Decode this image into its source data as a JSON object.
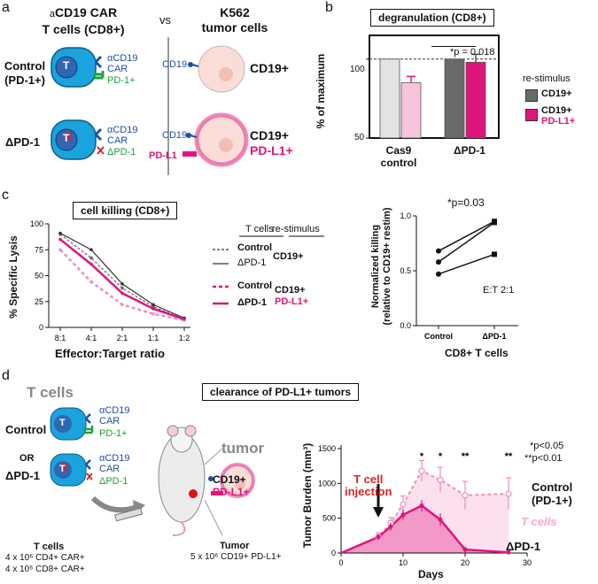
{
  "panel_a": {
    "letter": "a",
    "title_prefix": "a",
    "title_line1": "CD19 CAR",
    "title_line2": "T cells (CD8+)",
    "vs": "vs",
    "tumor_line1": "K562",
    "tumor_line2": "tumor cells",
    "row1_label_line1": "Control",
    "row1_label_line2": "(PD-1+)",
    "row2_label": "ΔPD-1",
    "cell_letter": "T",
    "car_line1": "αCD19",
    "car_line2": "CAR",
    "pd1_pos": "PD-1+",
    "pd1_neg": "ΔPD-1",
    "cd19": "CD19",
    "pdl1": "PD-L1",
    "tumor1_label": "CD19+",
    "tumor2_label_line1": "CD19+",
    "tumor2_label_line2": "PD-L1+",
    "colors": {
      "t_cell": "#1aa3dc",
      "car": "#1f4fa3",
      "pd1": "#1aa33a",
      "pink": "#e0147d",
      "tumor": "#f9ddd6"
    }
  },
  "panel_b": {
    "letter": "b",
    "title": "degranulation (CD8+)",
    "ylabel": "% of maximum",
    "yticks": [
      "100",
      "50"
    ],
    "xcat1_line1": "Cas9",
    "xcat1_line2": "control",
    "xcat2": "ΔPD-1",
    "significance": "*p = 0.018",
    "legend_title": "re-stimulus",
    "legend1": "CD19+",
    "legend2_line1": "CD19+",
    "legend2_line2": "PD-L1+"
  },
  "panel_c": {
    "letter": "c",
    "title": "cell killing (CD8+)",
    "ylabel": "% Specific Lysis",
    "xlabel": "Effector:Target ratio",
    "yticks": [
      "0",
      "25",
      "50",
      "75",
      "100"
    ],
    "xticks": [
      "8:1",
      "4:1",
      "2:1",
      "1:1",
      "1:2"
    ],
    "legend_hdr_tcells": "T cells",
    "legend_hdr_restim": "re-stimulus",
    "legend_control": "Control",
    "legend_dpd1": "ΔPD-1",
    "legend_cd19": "CD19+",
    "legend_pdl1_line1": "CD19+",
    "legend_pdl1_line2": "PD-L1+",
    "right_ylabel_line1": "Normalized killing",
    "right_ylabel_line2": "(relative to CD19+ restim)",
    "right_yticks": [
      "0.0",
      "0.5",
      "1.0"
    ],
    "right_xticks": [
      "Control",
      "ΔPD-1"
    ],
    "right_xlabel": "CD8+ T cells",
    "right_sig": "*p=0.03",
    "right_note": "E:T 2:1"
  },
  "panel_d": {
    "letter": "d",
    "title": "clearance of PD-L1+ tumors",
    "tcells_header": "T cells",
    "control": "Control",
    "or": "OR",
    "dpd1": "ΔPD-1",
    "tcells_dose_title": "T cells",
    "tcells_dose_line1": "4 x 10⁶ CD4+ CAR+",
    "tcells_dose_line2": "4 x 10⁶ CD8+ CAR+",
    "tumor_header": "tumor",
    "tumor_cd19": "CD19+",
    "tumor_pdl1": "PD-L1+",
    "tumor_dose_title": "Tumor",
    "tumor_dose_line": "5 x 10⁶ CD19+ PD-L1+",
    "ylabel": "Tumor Burden (mm³)",
    "xlabel": "Days",
    "yticks": [
      "0",
      "500",
      "1000",
      "1500"
    ],
    "xticks": [
      "0",
      "10",
      "20",
      "30"
    ],
    "injection_line1": "T cell",
    "injection_line2": "injection",
    "stars": [
      "*",
      "*",
      "**",
      "**"
    ],
    "sig1": "*p<0.05",
    "sig2": "**p<0.01",
    "label_control_line1": "Control",
    "label_control_line2": "(PD-1+)",
    "label_tcells": "T cells",
    "label_dpd1": "ΔPD-1"
  },
  "chart_data": [
    {
      "type": "bar",
      "title": "degranulation (CD8+)",
      "ylabel": "% of maximum",
      "ylim": [
        50,
        115
      ],
      "categories": [
        "Cas9 control",
        "ΔPD-1"
      ],
      "series": [
        {
          "name": "CD19+",
          "values": [
            100,
            100
          ]
        },
        {
          "name": "CD19+ PD-L1+",
          "values": [
            85,
            98
          ],
          "errors": [
            4,
            5
          ]
        }
      ]
    },
    {
      "type": "line",
      "title": "cell killing (CD8+)",
      "xlabel": "Effector:Target ratio",
      "ylabel": "% Specific Lysis",
      "ylim": [
        0,
        100
      ],
      "categories": [
        "8:1",
        "4:1",
        "2:1",
        "1:1",
        "1:2"
      ],
      "series": [
        {
          "name": "Control",
          "values": [
            90,
            67,
            38,
            20,
            8
          ]
        },
        {
          "name": "ΔPD-1",
          "values": [
            91,
            75,
            42,
            22,
            9
          ]
        },
        {
          "name": "Control",
          "values": [
            75,
            44,
            22,
            13,
            7
          ]
        },
        {
          "name": "ΔPD-1",
          "values": [
            85,
            61,
            33,
            18,
            8
          ]
        }
      ]
    },
    {
      "type": "line",
      "ylabel": "Normalized killing (relative to CD19+ restim)",
      "xlabel": "CD8+ T cells",
      "ylim": [
        0,
        1.0
      ],
      "categories": [
        "Control",
        "ΔPD-1"
      ],
      "series": [
        {
          "values": [
            0.68,
            0.95
          ]
        },
        {
          "values": [
            0.58,
            0.94
          ]
        },
        {
          "values": [
            0.47,
            0.65
          ]
        }
      ]
    },
    {
      "type": "area",
      "xlabel": "Days",
      "ylabel": "Tumor Burden (mm³)",
      "xlim": [
        0,
        30
      ],
      "ylim": [
        0,
        1500
      ],
      "x": [
        0,
        6,
        8,
        10,
        13,
        16,
        20,
        27
      ],
      "series": [
        {
          "name": "Control (PD-1+)",
          "values": [
            0,
            230,
            430,
            700,
            1180,
            1050,
            830,
            850
          ],
          "errors": [
            0,
            60,
            80,
            120,
            150,
            180,
            200,
            230
          ]
        },
        {
          "name": "ΔPD-1",
          "values": [
            0,
            230,
            380,
            550,
            680,
            480,
            50,
            10
          ],
          "errors": [
            0,
            40,
            60,
            70,
            80,
            90,
            40,
            5
          ]
        }
      ]
    }
  ]
}
